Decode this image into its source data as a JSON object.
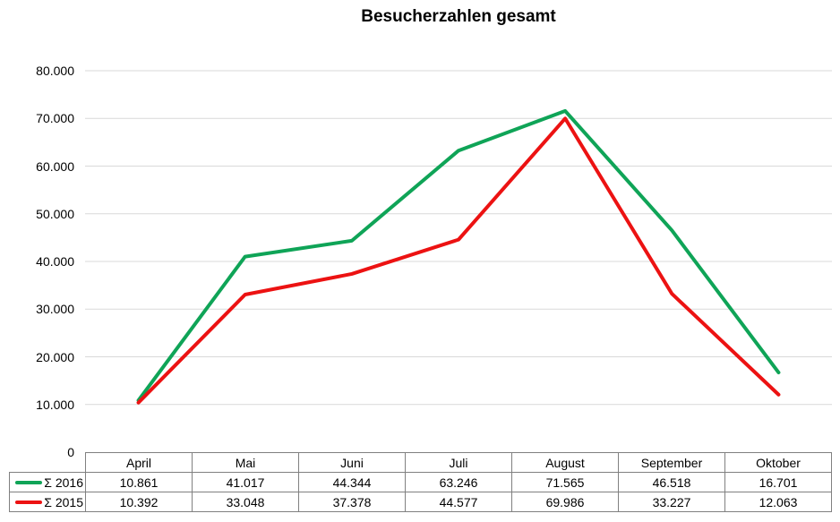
{
  "title": "Besucherzahlen gesamt",
  "colors": {
    "series_2016": "#0fa457",
    "series_2015": "#ec1212",
    "gridline": "#d9d9d9",
    "table_border": "#808080",
    "text": "#000000",
    "background": "#ffffff"
  },
  "chart_data": {
    "type": "line",
    "title": "Besucherzahlen gesamt",
    "xlabel": "",
    "ylabel": "",
    "categories": [
      "April",
      "Mai",
      "Juni",
      "Juli",
      "August",
      "September",
      "Oktober"
    ],
    "series": [
      {
        "name": "Σ 2016",
        "color": "#0fa457",
        "values": [
          10861,
          41017,
          44344,
          63246,
          71565,
          46518,
          16701
        ],
        "values_display": [
          "10.861",
          "41.017",
          "44.344",
          "63.246",
          "71.565",
          "46.518",
          "16.701"
        ]
      },
      {
        "name": "Σ 2015",
        "color": "#ec1212",
        "values": [
          10392,
          33048,
          37378,
          44577,
          69986,
          33227,
          12063
        ],
        "values_display": [
          "10.392",
          "33.048",
          "37.378",
          "44.577",
          "69.986",
          "33.227",
          "12.063"
        ]
      }
    ],
    "ylim": [
      0,
      80000
    ],
    "y_ticks": [
      {
        "label": "80.000",
        "value": 80000
      },
      {
        "label": "70.000",
        "value": 70000
      },
      {
        "label": "60.000",
        "value": 60000
      },
      {
        "label": "50.000",
        "value": 50000
      },
      {
        "label": "40.000",
        "value": 40000
      },
      {
        "label": "30.000",
        "value": 30000
      },
      {
        "label": "20.000",
        "value": 20000
      },
      {
        "label": "10.000",
        "value": 10000
      },
      {
        "label": "0",
        "value": 0
      }
    ],
    "grid": "horizontal",
    "legend_position": "table-left"
  }
}
